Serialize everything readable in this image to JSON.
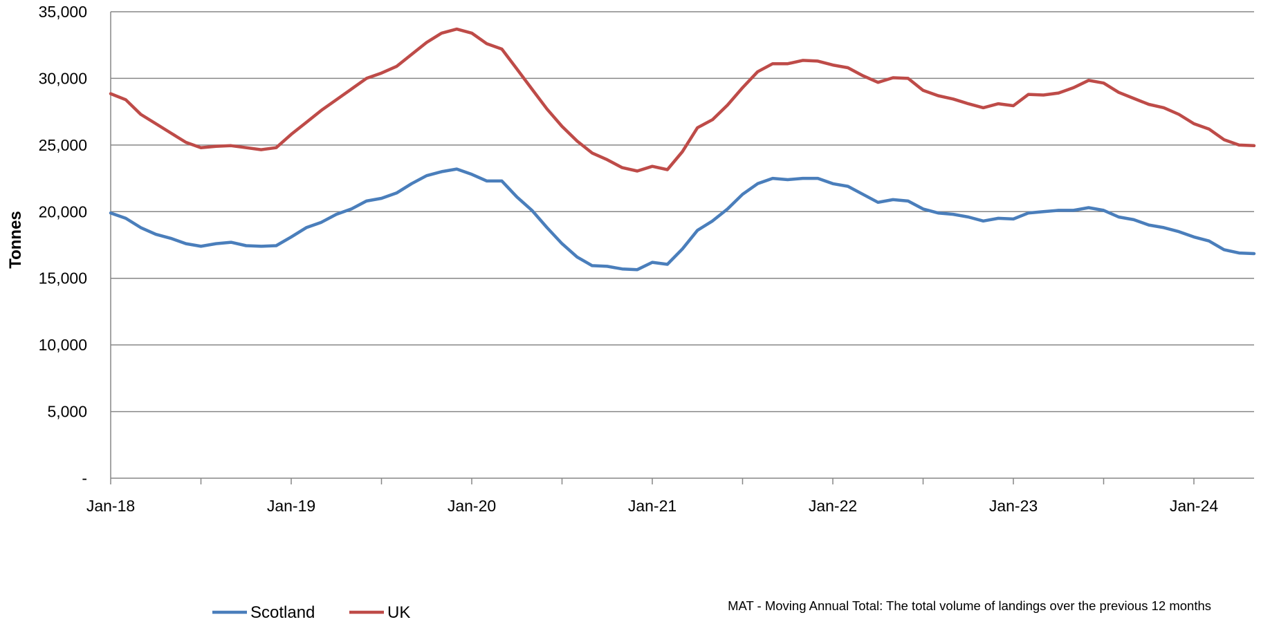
{
  "chart_data": {
    "type": "line",
    "ylabel": "Tonnes",
    "ylim": [
      0,
      35000
    ],
    "yticks": [
      {
        "value": 0,
        "label": "-"
      },
      {
        "value": 5000,
        "label": "5,000"
      },
      {
        "value": 10000,
        "label": "10,000"
      },
      {
        "value": 15000,
        "label": "15,000"
      },
      {
        "value": 20000,
        "label": "20,000"
      },
      {
        "value": 25000,
        "label": "25,000"
      },
      {
        "value": 30000,
        "label": "30,000"
      },
      {
        "value": 35000,
        "label": "35,000"
      }
    ],
    "x_start": "2018-01",
    "x_end": "2024-05",
    "xticks": [
      {
        "x": "2018-01",
        "label": "Jan-18"
      },
      {
        "x": "2019-01",
        "label": "Jan-19"
      },
      {
        "x": "2020-01",
        "label": "Jan-20"
      },
      {
        "x": "2021-01",
        "label": "Jan-21"
      },
      {
        "x": "2022-01",
        "label": "Jan-22"
      },
      {
        "x": "2023-01",
        "label": "Jan-23"
      },
      {
        "x": "2024-01",
        "label": "Jan-24"
      }
    ],
    "x": [
      "2018-01",
      "2018-02",
      "2018-03",
      "2018-04",
      "2018-05",
      "2018-06",
      "2018-07",
      "2018-08",
      "2018-09",
      "2018-10",
      "2018-11",
      "2018-12",
      "2019-01",
      "2019-02",
      "2019-03",
      "2019-04",
      "2019-05",
      "2019-06",
      "2019-07",
      "2019-08",
      "2019-09",
      "2019-10",
      "2019-11",
      "2019-12",
      "2020-01",
      "2020-02",
      "2020-03",
      "2020-04",
      "2020-05",
      "2020-06",
      "2020-07",
      "2020-08",
      "2020-09",
      "2020-10",
      "2020-11",
      "2020-12",
      "2021-01",
      "2021-02",
      "2021-03",
      "2021-04",
      "2021-05",
      "2021-06",
      "2021-07",
      "2021-08",
      "2021-09",
      "2021-10",
      "2021-11",
      "2021-12",
      "2022-01",
      "2022-02",
      "2022-03",
      "2022-04",
      "2022-05",
      "2022-06",
      "2022-07",
      "2022-08",
      "2022-09",
      "2022-10",
      "2022-11",
      "2022-12",
      "2023-01",
      "2023-02",
      "2023-03",
      "2023-04",
      "2023-05",
      "2023-06",
      "2023-07",
      "2023-08",
      "2023-09",
      "2023-10",
      "2023-11",
      "2023-12",
      "2024-01",
      "2024-02",
      "2024-03",
      "2024-04",
      "2024-05"
    ],
    "grid": true,
    "legend_position": "bottom-left",
    "series": [
      {
        "name": "Scotland",
        "color": "#4a7ebb",
        "values": [
          19900,
          19500,
          18800,
          18300,
          18000,
          17600,
          17400,
          17600,
          17700,
          17450,
          17400,
          17450,
          18100,
          18800,
          19200,
          19800,
          20200,
          20800,
          21000,
          21400,
          22100,
          22700,
          23000,
          23200,
          22800,
          22300,
          22300,
          21100,
          20100,
          18800,
          17600,
          16600,
          15950,
          15900,
          15700,
          15650,
          16200,
          16050,
          17200,
          18600,
          19300,
          20200,
          21300,
          22100,
          22500,
          22400,
          22500,
          22500,
          22100,
          21900,
          21300,
          20700,
          20900,
          20800,
          20200,
          19900,
          19800,
          19600,
          19300,
          19500,
          19450,
          19900,
          20000,
          20100,
          20100,
          20300,
          20100,
          19600,
          19400,
          19000,
          18800,
          18500,
          18100,
          17800,
          17150,
          16900,
          16850
        ]
      },
      {
        "name": "UK",
        "color": "#be4b48",
        "values": [
          28850,
          28400,
          27300,
          26600,
          25900,
          25200,
          24800,
          24900,
          24950,
          24800,
          24650,
          24800,
          25800,
          26700,
          27600,
          28400,
          29200,
          30000,
          30400,
          30900,
          31800,
          32700,
          33400,
          33700,
          33400,
          32600,
          32200,
          30700,
          29200,
          27700,
          26400,
          25300,
          24400,
          23900,
          23300,
          23050,
          23400,
          23150,
          24500,
          26300,
          26900,
          28000,
          29300,
          30500,
          31100,
          31100,
          31350,
          31300,
          31000,
          30800,
          30200,
          29700,
          30050,
          30000,
          29100,
          28700,
          28450,
          28100,
          27800,
          28100,
          27950,
          28800,
          28750,
          28900,
          29300,
          29850,
          29650,
          28950,
          28500,
          28050,
          27800,
          27300,
          26600,
          26200,
          25400,
          25000,
          24950
        ]
      }
    ],
    "note": "MAT - Moving Annual Total: The total volume of landings  over the previous 12 months"
  }
}
